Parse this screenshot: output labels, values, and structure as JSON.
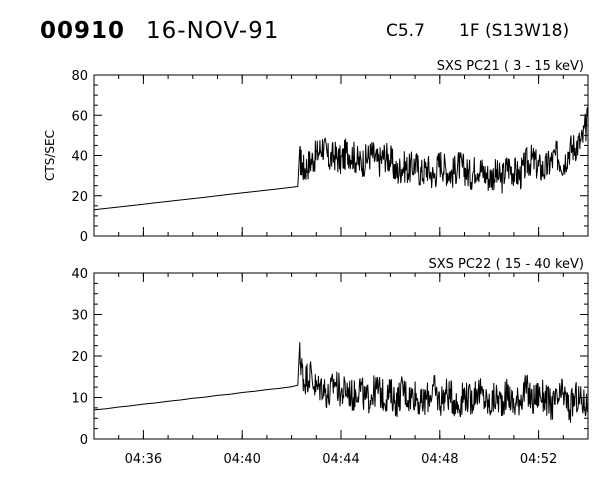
{
  "header": {
    "event_id": "00910",
    "date": "16-NOV-91",
    "flare_class": "C5.7",
    "flare_importance": "1F (S13W18)"
  },
  "chart_data": [
    {
      "type": "line",
      "title": "SXS PC21  (  3 - 15 keV)",
      "ylabel": "CTS/SEC",
      "xlabel": "",
      "ylim": [
        0,
        80
      ],
      "yticks": [
        0,
        20,
        40,
        60,
        80
      ],
      "xlim": [
        "04:34:00",
        "04:54:00"
      ],
      "xtick_labels": [
        "04:36",
        "04:40",
        "04:44",
        "04:48",
        "04:52"
      ],
      "legend": "none",
      "grid": false,
      "series": [
        {
          "x": [
            "04:34:00",
            "04:34:30",
            "04:35:00",
            "04:35:30",
            "04:36:00",
            "04:36:30",
            "04:37:00",
            "04:37:30",
            "04:38:00",
            "04:38:30",
            "04:39:00",
            "04:39:30",
            "04:40:00",
            "04:40:30",
            "04:41:00",
            "04:41:30",
            "04:42:00",
            "04:42:15",
            "04:42:20",
            "04:42:30",
            "04:42:45",
            "04:43:00",
            "04:43:15",
            "04:43:30",
            "04:43:45",
            "04:44:00",
            "04:44:15",
            "04:44:30",
            "04:44:45",
            "04:45:00",
            "04:45:15",
            "04:45:30",
            "04:45:45",
            "04:46:00",
            "04:46:15",
            "04:46:30",
            "04:46:45",
            "04:47:00",
            "04:47:15",
            "04:47:30",
            "04:47:45",
            "04:48:00",
            "04:48:15",
            "04:48:30",
            "04:48:45",
            "04:49:00",
            "04:49:15",
            "04:49:30",
            "04:49:45",
            "04:50:00",
            "04:50:15",
            "04:50:30",
            "04:50:45",
            "04:51:00",
            "04:51:15",
            "04:51:30",
            "04:51:45",
            "04:52:00",
            "04:52:15",
            "04:52:30",
            "04:52:45",
            "04:53:00",
            "04:53:15",
            "04:53:30",
            "04:53:45",
            "04:54:00"
          ],
          "values": [
            13,
            13.7,
            14.4,
            15.1,
            15.8,
            16.5,
            17.2,
            17.9,
            18.6,
            19.3,
            20,
            20.7,
            21.4,
            22.1,
            22.8,
            23.5,
            24.2,
            24.6,
            38,
            33,
            37,
            40,
            45,
            38,
            40,
            37,
            42,
            40,
            36,
            38,
            41,
            36,
            40,
            38,
            31,
            35,
            33,
            36,
            31,
            34,
            29,
            37,
            33,
            31,
            35,
            33,
            30,
            35,
            32,
            29,
            31,
            28,
            35,
            32,
            30,
            36,
            38,
            34,
            33,
            37,
            40,
            36,
            43,
            45,
            47,
            58
          ]
        }
      ]
    },
    {
      "type": "line",
      "title": "SXS PC22  ( 15 - 40 keV)",
      "ylabel": "",
      "xlabel": "",
      "ylim": [
        0,
        40
      ],
      "yticks": [
        0,
        10,
        20,
        30,
        40
      ],
      "xlim": [
        "04:34:00",
        "04:54:00"
      ],
      "xtick_labels": [
        "04:36",
        "04:40",
        "04:44",
        "04:48",
        "04:52"
      ],
      "legend": "none",
      "grid": false,
      "series": [
        {
          "x": [
            "04:34:00",
            "04:34:30",
            "04:35:00",
            "04:35:30",
            "04:36:00",
            "04:36:30",
            "04:37:00",
            "04:37:30",
            "04:38:00",
            "04:38:30",
            "04:39:00",
            "04:39:30",
            "04:40:00",
            "04:40:30",
            "04:41:00",
            "04:41:30",
            "04:42:00",
            "04:42:15",
            "04:42:20",
            "04:42:30",
            "04:42:45",
            "04:43:00",
            "04:43:15",
            "04:43:30",
            "04:43:45",
            "04:44:00",
            "04:44:15",
            "04:44:30",
            "04:44:45",
            "04:45:00",
            "04:45:15",
            "04:45:30",
            "04:45:45",
            "04:46:00",
            "04:46:15",
            "04:46:30",
            "04:46:45",
            "04:47:00",
            "04:47:15",
            "04:47:30",
            "04:47:45",
            "04:48:00",
            "04:48:15",
            "04:48:30",
            "04:48:45",
            "04:49:00",
            "04:49:15",
            "04:49:30",
            "04:49:45",
            "04:50:00",
            "04:50:15",
            "04:50:30",
            "04:50:45",
            "04:51:00",
            "04:51:15",
            "04:51:30",
            "04:51:45",
            "04:52:00",
            "04:52:15",
            "04:52:30",
            "04:52:45",
            "04:53:00",
            "04:53:15",
            "04:53:30",
            "04:53:45",
            "04:54:00"
          ],
          "values": [
            7,
            7.3,
            7.7,
            8,
            8.4,
            8.7,
            9.1,
            9.4,
            9.8,
            10.1,
            10.5,
            10.8,
            11.2,
            11.5,
            11.9,
            12.2,
            12.6,
            13,
            20,
            14,
            16,
            12,
            13,
            10,
            14,
            11,
            12,
            10,
            13,
            9,
            11,
            12,
            10,
            11,
            9,
            12,
            10,
            11,
            8,
            10,
            12,
            9,
            11,
            10,
            8,
            11,
            9,
            12,
            10,
            8,
            10,
            9,
            11,
            8,
            10,
            12,
            9,
            11,
            10,
            8,
            9,
            11,
            7,
            10,
            9,
            8
          ]
        }
      ]
    }
  ]
}
